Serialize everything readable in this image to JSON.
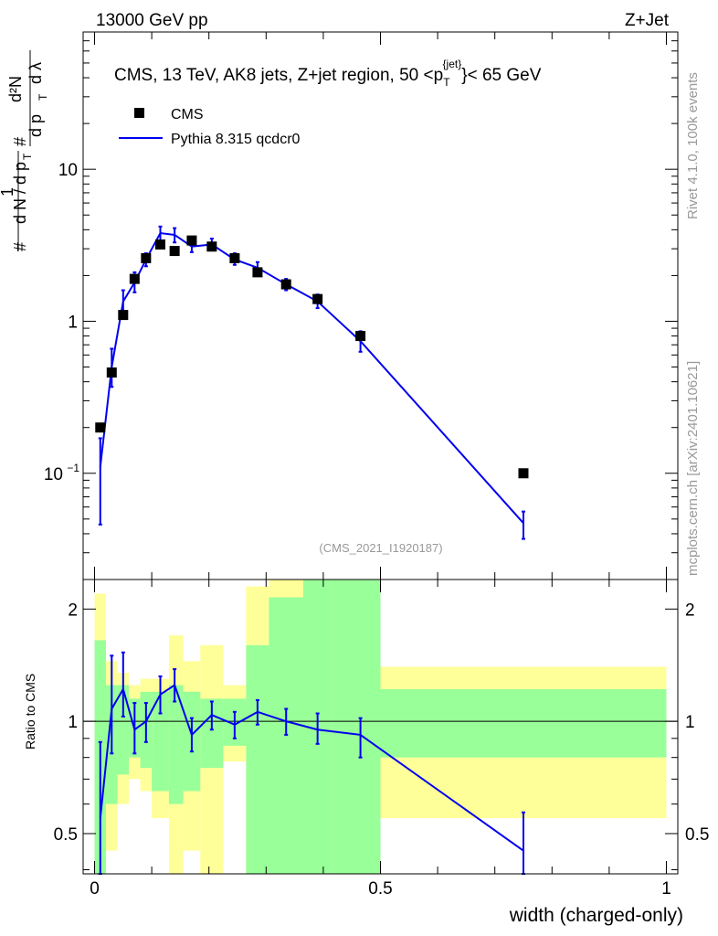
{
  "header": {
    "left": "13000 GeV pp",
    "right": "Z+Jet",
    "side_top": "Rivet 4.1.0,  100k events",
    "side_bottom": "mcplots.cern.ch [arXiv:2401.10621]"
  },
  "chart_data": [
    {
      "panel": "main",
      "type": "scatter",
      "title": "CMS, 13 TeV, AK8 jets, Z+jet region, 50 <p_T^{jet}< 65 GeV",
      "title_parts": {
        "prefix": "CMS, 13 TeV, AK8 jets, Z+jet region, 50 <",
        "p": "p",
        "sub": "T",
        "sup": "{jet}",
        "suffix": "}< 65 GeV"
      },
      "watermark": "(CMS_2021_I1920187)",
      "ylabel": "1/(dN/dpT) d²N/(dpT dλ)",
      "yscale": "log",
      "ylim": [
        0.02,
        80
      ],
      "xlim": [
        -0.02,
        1.02
      ],
      "yticks_major": [
        0.1,
        1,
        10
      ],
      "ytick_labels": [
        "10",
        "1",
        "10"
      ],
      "ytick_exp": "−1",
      "legend": [
        {
          "name": "CMS",
          "marker": "square",
          "color": "#000000"
        },
        {
          "name": "Pythia 8.315 qcdcr0",
          "marker": "line",
          "color": "#0000ee"
        }
      ],
      "series": [
        {
          "name": "CMS",
          "x": [
            0.01,
            0.03,
            0.05,
            0.07,
            0.09,
            0.115,
            0.14,
            0.17,
            0.205,
            0.245,
            0.285,
            0.335,
            0.39,
            0.465,
            0.75
          ],
          "values": [
            0.2,
            0.46,
            1.1,
            1.9,
            2.6,
            3.2,
            2.9,
            3.4,
            3.1,
            2.6,
            2.1,
            1.75,
            1.4,
            0.8,
            0.1
          ]
        },
        {
          "name": "Pythia 8.315 qcdcr0",
          "x": [
            0.01,
            0.03,
            0.05,
            0.07,
            0.09,
            0.115,
            0.14,
            0.17,
            0.205,
            0.245,
            0.285,
            0.335,
            0.39,
            0.465,
            0.75
          ],
          "values": [
            0.11,
            0.5,
            1.35,
            1.8,
            2.55,
            3.8,
            3.7,
            3.1,
            3.2,
            2.55,
            2.25,
            1.75,
            1.35,
            0.74,
            0.047
          ],
          "err_lo": [
            0.046,
            0.37,
            1.15,
            1.55,
            2.3,
            3.4,
            3.3,
            2.85,
            2.95,
            2.35,
            2.05,
            1.6,
            1.22,
            0.63,
            0.037
          ],
          "err_hi": [
            0.17,
            0.66,
            1.6,
            2.1,
            2.8,
            4.2,
            4.1,
            3.4,
            3.5,
            2.8,
            2.45,
            1.9,
            1.5,
            0.86,
            0.056
          ]
        }
      ]
    },
    {
      "panel": "ratio",
      "type": "line",
      "ylabel": "Ratio to CMS",
      "xlabel": "width (charged-only)",
      "yscale": "log",
      "ylim": [
        0.39,
        2.4
      ],
      "xlim": [
        -0.02,
        1.02
      ],
      "yticks": [
        0.5,
        1,
        2
      ],
      "ytick_labels": [
        "0.5",
        "1",
        "2"
      ],
      "xticks": [
        0,
        0.5,
        1
      ],
      "xtick_labels": [
        "0",
        "0.5",
        "1"
      ],
      "bands": [
        {
          "x0": 0.0,
          "x1": 0.02,
          "y1_lo": 0.39,
          "y1_hi": 1.65,
          "y2_lo": 0.39,
          "y2_hi": 2.2
        },
        {
          "x0": 0.02,
          "x1": 0.04,
          "y1_lo": 0.6,
          "y1_hi": 1.25,
          "y2_lo": 0.45,
          "y2_hi": 1.45
        },
        {
          "x0": 0.04,
          "x1": 0.06,
          "y1_lo": 0.72,
          "y1_hi": 1.25,
          "y2_lo": 0.6,
          "y2_hi": 1.35
        },
        {
          "x0": 0.06,
          "x1": 0.08,
          "y1_lo": 0.8,
          "y1_hi": 1.15,
          "y2_lo": 0.7,
          "y2_hi": 1.25
        },
        {
          "x0": 0.08,
          "x1": 0.1,
          "y1_lo": 0.75,
          "y1_hi": 1.2,
          "y2_lo": 0.65,
          "y2_hi": 1.3
        },
        {
          "x0": 0.1,
          "x1": 0.13,
          "y1_lo": 0.65,
          "y1_hi": 1.2,
          "y2_lo": 0.55,
          "y2_hi": 1.3
        },
        {
          "x0": 0.13,
          "x1": 0.155,
          "y1_lo": 0.6,
          "y1_hi": 1.25,
          "y2_lo": 0.39,
          "y2_hi": 1.7
        },
        {
          "x0": 0.155,
          "x1": 0.185,
          "y1_lo": 0.65,
          "y1_hi": 1.2,
          "y2_lo": 0.45,
          "y2_hi": 1.45
        },
        {
          "x0": 0.185,
          "x1": 0.225,
          "y1_lo": 0.75,
          "y1_hi": 1.15,
          "y2_lo": 0.39,
          "y2_hi": 1.6
        },
        {
          "x0": 0.225,
          "x1": 0.265,
          "y1_lo": 0.86,
          "y1_hi": 1.15,
          "y2_lo": 0.78,
          "y2_hi": 1.25
        },
        {
          "x0": 0.265,
          "x1": 0.305,
          "y1_lo": 0.39,
          "y1_hi": 1.6,
          "y2_lo": 0.39,
          "y2_hi": 2.3
        },
        {
          "x0": 0.305,
          "x1": 0.365,
          "y1_lo": 0.39,
          "y1_hi": 2.15,
          "y2_lo": 0.39,
          "y2_hi": 2.4
        },
        {
          "x0": 0.365,
          "x1": 0.415,
          "y1_lo": 0.39,
          "y1_hi": 2.4,
          "y2_lo": 0.39,
          "y2_hi": 2.4
        },
        {
          "x0": 0.415,
          "x1": 0.5,
          "y1_lo": 0.39,
          "y1_hi": 2.4,
          "y2_lo": 0.39,
          "y2_hi": 2.4
        },
        {
          "x0": 0.5,
          "x1": 1.0,
          "y1_lo": 0.8,
          "y1_hi": 1.22,
          "y2_lo": 0.55,
          "y2_hi": 1.4
        }
      ],
      "series": [
        {
          "name": "Pythia 8.315 qcdcr0 / CMS",
          "x": [
            0.01,
            0.03,
            0.05,
            0.07,
            0.09,
            0.115,
            0.14,
            0.17,
            0.205,
            0.245,
            0.285,
            0.335,
            0.39,
            0.465,
            0.75
          ],
          "values": [
            0.55,
            1.08,
            1.22,
            0.95,
            1.0,
            1.18,
            1.25,
            0.92,
            1.04,
            0.98,
            1.06,
            1.0,
            0.95,
            0.92,
            0.45
          ],
          "err_lo": [
            0.39,
            0.82,
            1.03,
            0.82,
            0.88,
            1.05,
            1.13,
            0.83,
            0.95,
            0.9,
            0.98,
            0.92,
            0.87,
            0.8,
            0.39
          ],
          "err_hi": [
            0.88,
            1.5,
            1.53,
            1.12,
            1.12,
            1.32,
            1.38,
            1.02,
            1.13,
            1.06,
            1.14,
            1.08,
            1.05,
            1.02,
            0.57
          ]
        }
      ]
    }
  ]
}
